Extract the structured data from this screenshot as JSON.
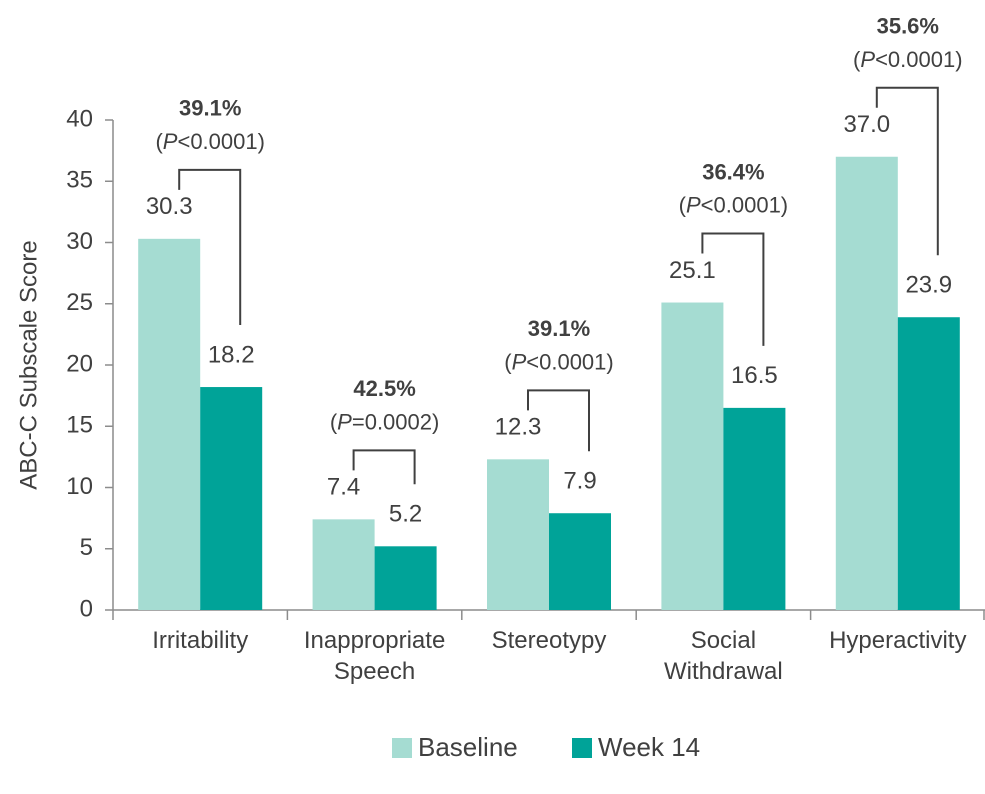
{
  "chart_data": {
    "type": "bar",
    "y_label": "ABC-C Subscale Score",
    "categories": [
      "Irritability",
      "Inappropriate Speech",
      "Stereotypy",
      "Social Withdrawal",
      "Hyperactivity"
    ],
    "series": [
      {
        "name": "Baseline",
        "color": "#a5dcd2",
        "values": [
          30.3,
          7.4,
          12.3,
          25.1,
          37.0
        ],
        "value_labels": [
          "30.3",
          "7.4",
          "12.3",
          "25.1",
          "37.0"
        ]
      },
      {
        "name": "Week 14",
        "color": "#00a398",
        "values": [
          18.2,
          5.2,
          7.9,
          16.5,
          23.9
        ],
        "value_labels": [
          "18.2",
          "5.2",
          "7.9",
          "16.5",
          "23.9"
        ]
      }
    ],
    "annotations": [
      {
        "percent": "39.1%",
        "p_text": [
          "(",
          "P",
          "<0.0001)"
        ]
      },
      {
        "percent": "42.5%",
        "p_text": [
          "(",
          "P",
          "=0.0002)"
        ]
      },
      {
        "percent": "39.1%",
        "p_text": [
          "(",
          "P",
          "<0.0001)"
        ]
      },
      {
        "percent": "36.4%",
        "p_text": [
          "(",
          "P",
          "<0.0001)"
        ]
      },
      {
        "percent": "35.6%",
        "p_text": [
          "(",
          "P",
          "<0.0001)"
        ]
      }
    ],
    "ylim": [
      0,
      40
    ],
    "yticks": [
      0,
      5,
      10,
      15,
      20,
      25,
      30,
      35,
      40
    ],
    "legend": "bottom"
  }
}
